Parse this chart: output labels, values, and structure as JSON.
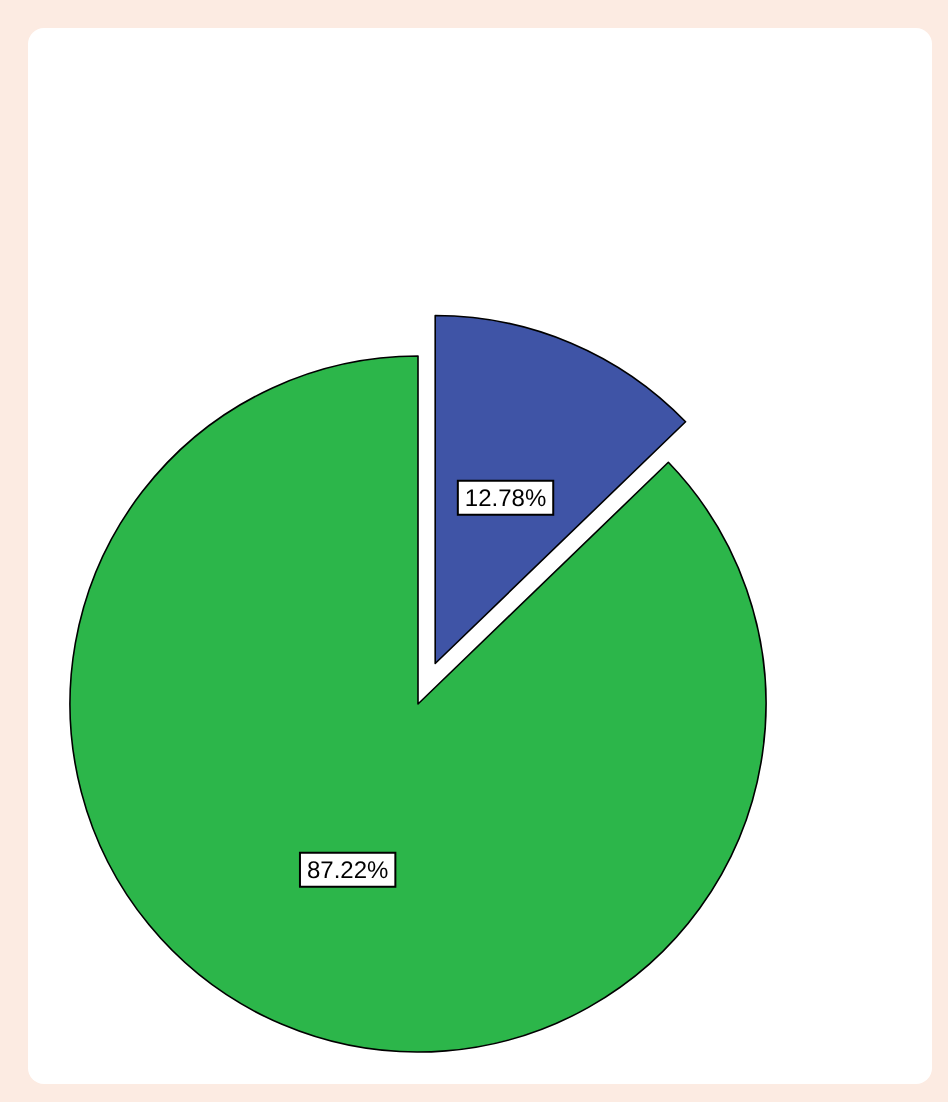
{
  "chart_data": {
    "type": "pie",
    "categories": [
      null,
      null
    ],
    "values": [
      12.78,
      87.22
    ],
    "colors": [
      "#3f54a6",
      "#2cb64a"
    ],
    "value_labels": [
      "12.78%",
      "87.22%"
    ]
  }
}
